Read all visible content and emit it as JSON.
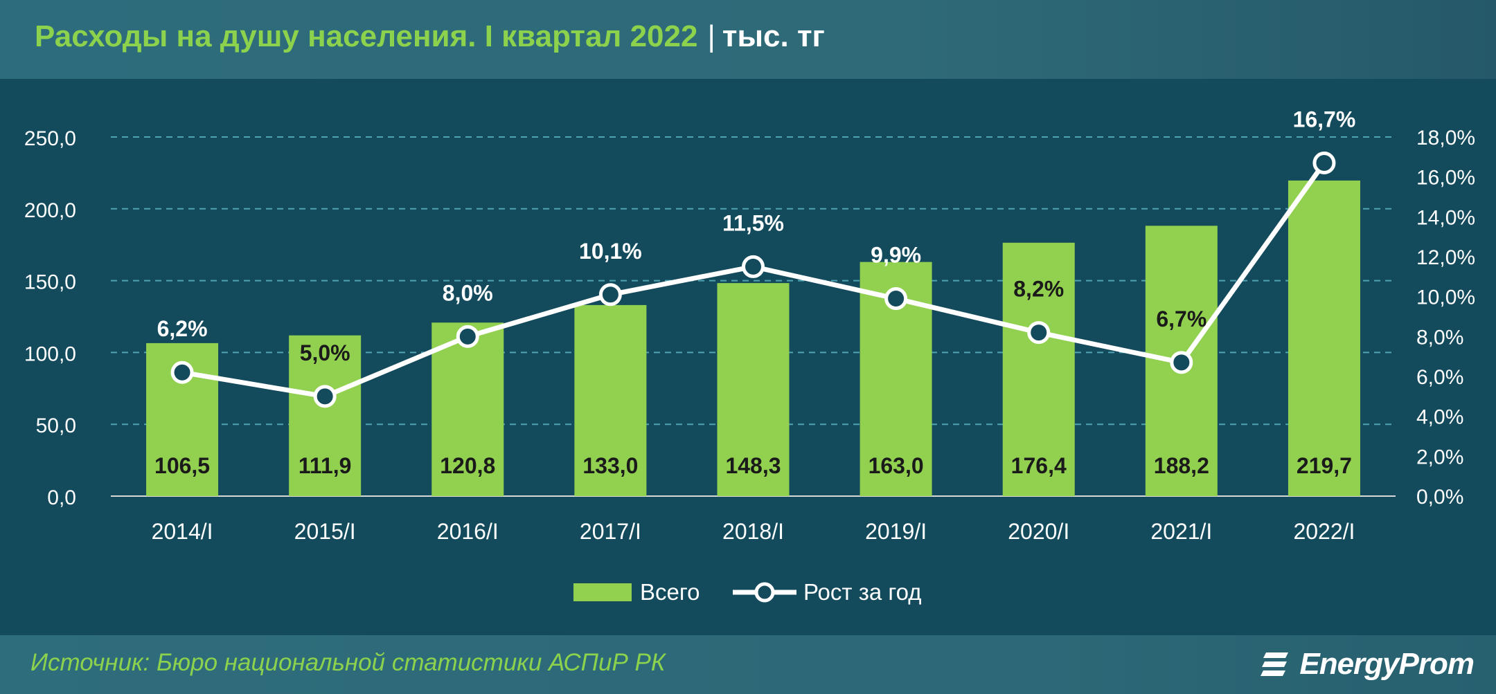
{
  "header": {
    "title": "Расходы на душу населения. I квартал 2022",
    "separator": "|",
    "unit": "тыс. тг"
  },
  "chart_data": {
    "type": "bar",
    "categories": [
      "2014/I",
      "2015/I",
      "2016/I",
      "2017/I",
      "2018/I",
      "2019/I",
      "2020/I",
      "2021/I",
      "2022/I"
    ],
    "series": [
      {
        "name": "Всего",
        "type": "bar",
        "axis": "left",
        "color": "#92d050",
        "values": [
          106.5,
          111.9,
          120.8,
          133.0,
          148.3,
          163.0,
          176.4,
          188.2,
          219.7
        ],
        "labels": [
          "106,5",
          "111,9",
          "120,8",
          "133,0",
          "148,3",
          "163,0",
          "176,4",
          "188,2",
          "219,7"
        ]
      },
      {
        "name": "Рост за год",
        "type": "line",
        "axis": "right",
        "color": "#ffffff",
        "values": [
          6.2,
          5.0,
          8.0,
          10.1,
          11.5,
          9.9,
          8.2,
          6.7,
          16.7
        ],
        "labels": [
          "6,2%",
          "5,0%",
          "8,0%",
          "10,1%",
          "11,5%",
          "9,9%",
          "8,2%",
          "6,7%",
          "16,7%"
        ]
      }
    ],
    "y_left": {
      "ylim": [
        0,
        250
      ],
      "ticks": [
        "0,0",
        "50,0",
        "100,0",
        "150,0",
        "200,0",
        "250,0"
      ]
    },
    "y_right": {
      "ylim": [
        0,
        18
      ],
      "ticks": [
        "0,0%",
        "2,0%",
        "4,0%",
        "6,0%",
        "8,0%",
        "10,0%",
        "12,0%",
        "14,0%",
        "16,0%",
        "18,0%"
      ]
    },
    "grid": true,
    "legend": "bottom-center",
    "colors": {
      "bar": "#92d050",
      "line": "#ffffff",
      "grid": "#4fa3b3",
      "axis_text": "#ffffff",
      "bar_label": "#1a1a1a",
      "plot_bg": "#134b5c"
    }
  },
  "footer": {
    "source": "Источник: Бюро национальной статистики АСПиР РК",
    "logo_text": "EnergyProm"
  }
}
